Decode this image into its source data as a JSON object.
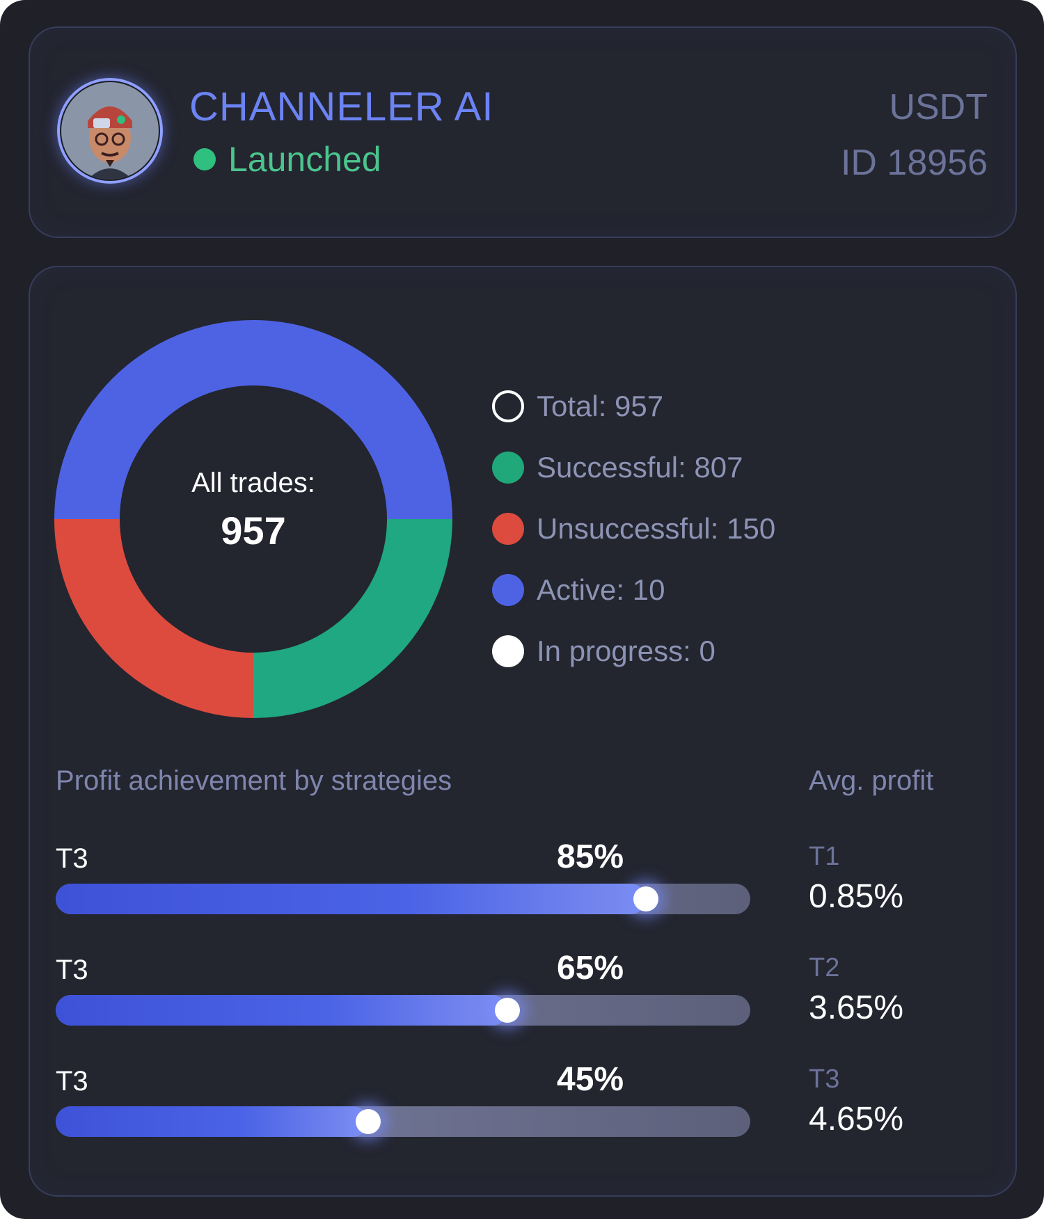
{
  "header": {
    "bot_name": "CHANNELER AI",
    "status": "Launched",
    "currency": "USDT",
    "bot_id": "ID 18956",
    "colors": {
      "name": "#6c83f3",
      "status": "#2fbf7f",
      "muted": "#6c7399"
    }
  },
  "chart_data": {
    "type": "pie",
    "title": "",
    "center_label": "All trades:",
    "center_value": "957",
    "slices": [
      {
        "label": "Successful",
        "value": 807,
        "color": "#1fa881"
      },
      {
        "label": "Unsuccessful",
        "value": 150,
        "color": "#dd4b3e"
      },
      {
        "label": "Active",
        "value": 10,
        "color": "#4e63e4"
      }
    ],
    "note_visual_proportions": [
      0.25,
      0.25,
      0.5
    ]
  },
  "legend": [
    {
      "text": "Total: 957",
      "style": "ring",
      "color": "#ffffff"
    },
    {
      "text": "Successful: 807",
      "style": "fill",
      "color": "#20a87a"
    },
    {
      "text": "Unsuccessful: 150",
      "style": "fill",
      "color": "#dd4b3e"
    },
    {
      "text": "Active: 10",
      "style": "fill",
      "color": "#4e63e4"
    },
    {
      "text": "In progress: 0",
      "style": "fill",
      "color": "#ffffff"
    }
  ],
  "profit": {
    "title": "Profit achievement by strategies",
    "avg_title": "Avg. profit",
    "bars": [
      {
        "label": "T3",
        "percent_text": "85%",
        "value": 0.85
      },
      {
        "label": "T3",
        "percent_text": "65%",
        "value": 0.65
      },
      {
        "label": "T3",
        "percent_text": "45%",
        "value": 0.45
      }
    ],
    "avg": [
      {
        "name": "T1",
        "value": "0.85%"
      },
      {
        "name": "T2",
        "value": "3.65%"
      },
      {
        "name": "T3",
        "value": "4.65%"
      }
    ]
  }
}
